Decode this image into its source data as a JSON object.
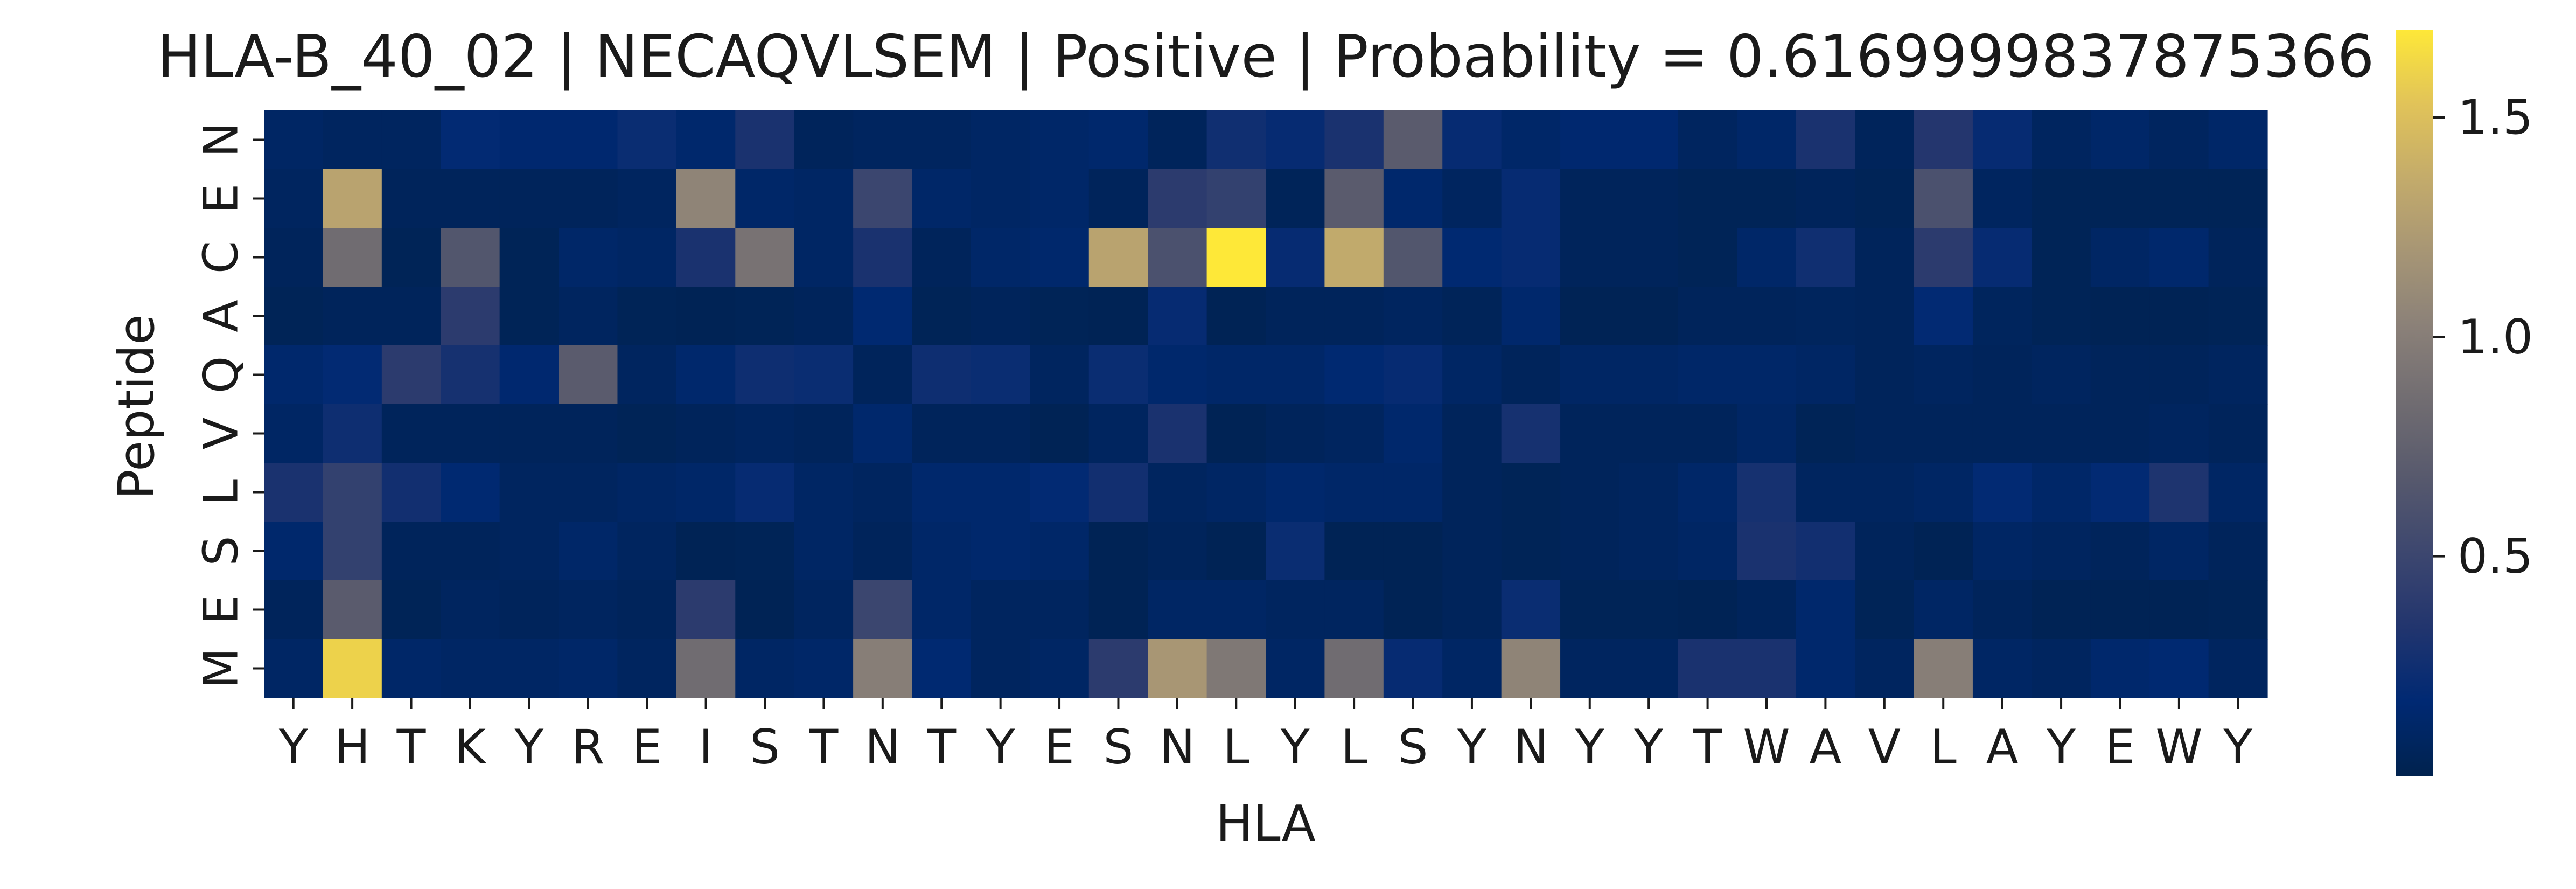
{
  "chart_data": {
    "type": "heatmap",
    "title": "HLA-B_40_02 | NECAQVLSEM | Positive | Probability = 0.6169999837875366",
    "xlabel": "HLA",
    "ylabel": "Peptide",
    "x_labels": [
      "Y",
      "H",
      "T",
      "K",
      "Y",
      "R",
      "E",
      "I",
      "S",
      "T",
      "N",
      "T",
      "Y",
      "E",
      "S",
      "N",
      "L",
      "Y",
      "L",
      "S",
      "Y",
      "N",
      "Y",
      "Y",
      "T",
      "W",
      "A",
      "V",
      "L",
      "A",
      "Y",
      "E",
      "W",
      "Y"
    ],
    "y_labels": [
      "N",
      "E",
      "C",
      "A",
      "Q",
      "V",
      "L",
      "S",
      "E",
      "M"
    ],
    "colorbar": {
      "colormap": "cividis",
      "min": 0.0,
      "max": 1.7,
      "ticks": [
        0.5,
        1.0,
        1.5
      ]
    },
    "values": [
      [
        0.1,
        0.08,
        0.08,
        0.18,
        0.15,
        0.15,
        0.22,
        0.14,
        0.3,
        0.06,
        0.08,
        0.08,
        0.1,
        0.12,
        0.14,
        0.06,
        0.25,
        0.2,
        0.3,
        0.7,
        0.2,
        0.12,
        0.15,
        0.15,
        0.08,
        0.12,
        0.3,
        0.06,
        0.35,
        0.2,
        0.08,
        0.12,
        0.08,
        0.12
      ],
      [
        0.08,
        1.3,
        0.06,
        0.06,
        0.06,
        0.06,
        0.08,
        1.05,
        0.12,
        0.1,
        0.5,
        0.12,
        0.1,
        0.12,
        0.06,
        0.4,
        0.45,
        0.05,
        0.7,
        0.14,
        0.08,
        0.2,
        0.06,
        0.06,
        0.04,
        0.04,
        0.06,
        0.04,
        0.6,
        0.08,
        0.04,
        0.04,
        0.04,
        0.04
      ],
      [
        0.06,
        0.85,
        0.04,
        0.65,
        0.04,
        0.12,
        0.1,
        0.3,
        0.9,
        0.1,
        0.3,
        0.06,
        0.12,
        0.14,
        1.3,
        0.6,
        1.7,
        0.2,
        1.35,
        0.65,
        0.16,
        0.2,
        0.06,
        0.06,
        0.04,
        0.12,
        0.25,
        0.06,
        0.4,
        0.2,
        0.04,
        0.1,
        0.14,
        0.06
      ],
      [
        0.04,
        0.06,
        0.06,
        0.4,
        0.04,
        0.08,
        0.04,
        0.03,
        0.04,
        0.06,
        0.16,
        0.04,
        0.06,
        0.04,
        0.03,
        0.2,
        0.03,
        0.06,
        0.06,
        0.08,
        0.05,
        0.14,
        0.03,
        0.03,
        0.06,
        0.06,
        0.07,
        0.06,
        0.18,
        0.07,
        0.04,
        0.03,
        0.03,
        0.04
      ],
      [
        0.14,
        0.18,
        0.4,
        0.28,
        0.15,
        0.7,
        0.08,
        0.14,
        0.24,
        0.22,
        0.06,
        0.24,
        0.22,
        0.08,
        0.22,
        0.14,
        0.12,
        0.12,
        0.16,
        0.2,
        0.1,
        0.06,
        0.1,
        0.1,
        0.12,
        0.12,
        0.1,
        0.06,
        0.08,
        0.06,
        0.08,
        0.06,
        0.06,
        0.08
      ],
      [
        0.1,
        0.24,
        0.06,
        0.06,
        0.06,
        0.06,
        0.04,
        0.06,
        0.08,
        0.06,
        0.14,
        0.06,
        0.06,
        0.03,
        0.08,
        0.3,
        0.03,
        0.06,
        0.08,
        0.14,
        0.06,
        0.28,
        0.06,
        0.06,
        0.06,
        0.1,
        0.04,
        0.06,
        0.06,
        0.06,
        0.06,
        0.06,
        0.08,
        0.06
      ],
      [
        0.3,
        0.45,
        0.26,
        0.16,
        0.08,
        0.08,
        0.1,
        0.12,
        0.2,
        0.1,
        0.08,
        0.14,
        0.14,
        0.18,
        0.26,
        0.08,
        0.1,
        0.14,
        0.12,
        0.12,
        0.06,
        0.04,
        0.06,
        0.08,
        0.12,
        0.28,
        0.08,
        0.08,
        0.1,
        0.18,
        0.12,
        0.18,
        0.32,
        0.1
      ],
      [
        0.14,
        0.45,
        0.06,
        0.06,
        0.08,
        0.12,
        0.08,
        0.03,
        0.04,
        0.1,
        0.06,
        0.12,
        0.14,
        0.12,
        0.03,
        0.06,
        0.03,
        0.22,
        0.03,
        0.03,
        0.06,
        0.04,
        0.06,
        0.08,
        0.1,
        0.3,
        0.26,
        0.06,
        0.03,
        0.1,
        0.08,
        0.06,
        0.1,
        0.06
      ],
      [
        0.06,
        0.7,
        0.04,
        0.08,
        0.06,
        0.08,
        0.06,
        0.4,
        0.03,
        0.08,
        0.5,
        0.12,
        0.08,
        0.08,
        0.03,
        0.1,
        0.1,
        0.08,
        0.08,
        0.03,
        0.06,
        0.22,
        0.04,
        0.04,
        0.03,
        0.06,
        0.14,
        0.04,
        0.1,
        0.06,
        0.03,
        0.03,
        0.03,
        0.04
      ],
      [
        0.1,
        1.6,
        0.12,
        0.1,
        0.1,
        0.12,
        0.08,
        0.85,
        0.1,
        0.12,
        1.0,
        0.16,
        0.08,
        0.1,
        0.4,
        1.2,
        0.95,
        0.1,
        0.85,
        0.2,
        0.1,
        1.05,
        0.08,
        0.08,
        0.3,
        0.3,
        0.14,
        0.08,
        1.0,
        0.1,
        0.08,
        0.14,
        0.16,
        0.08
      ]
    ]
  }
}
